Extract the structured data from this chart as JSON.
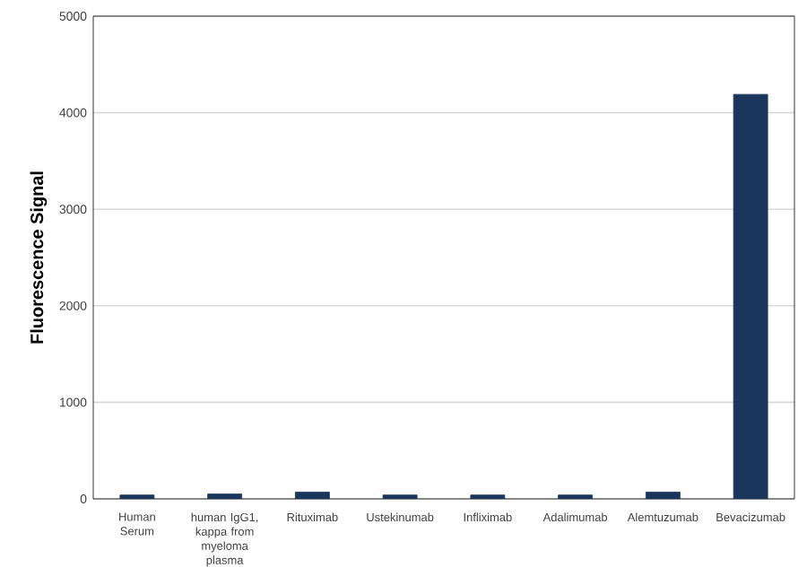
{
  "chart_data": {
    "type": "bar",
    "ylabel": "Fluorescence Signal",
    "categories": [
      "Human Serum",
      "human IgG1, kappa from myeloma plasma",
      "Rituximab",
      "Ustekinumab",
      "Infliximab",
      "Adalimumab",
      "Alemtuzumab",
      "Bevacizumab"
    ],
    "values": [
      40,
      50,
      70,
      40,
      40,
      40,
      70,
      4190
    ],
    "color": "#1b365d",
    "ylim": [
      0,
      5000
    ],
    "yticks": [
      0,
      1000,
      2000,
      3000,
      4000,
      5000
    ],
    "grid": "y"
  }
}
